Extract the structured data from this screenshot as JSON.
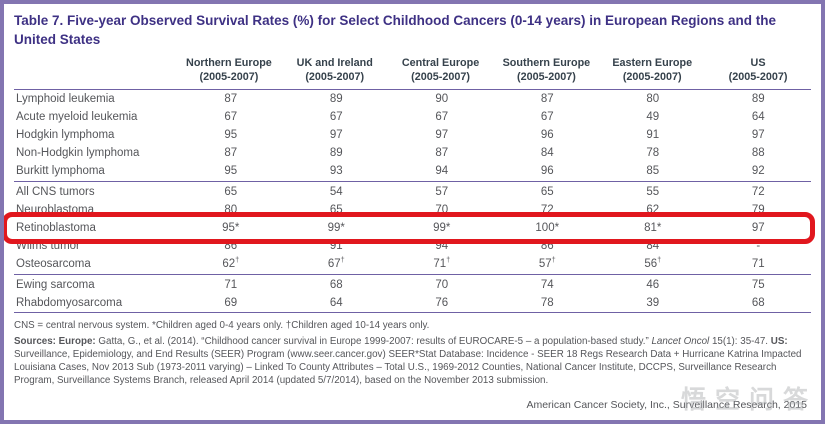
{
  "title": "Table 7. Five-year Observed Survival Rates (%) for Select Childhood Cancers (0-14 years) in European Regions and the United States",
  "table": {
    "columns": [
      {
        "region": "Northern Europe",
        "period": "(2005-2007)"
      },
      {
        "region": "UK and Ireland",
        "period": "(2005-2007)"
      },
      {
        "region": "Central Europe",
        "period": "(2005-2007)"
      },
      {
        "region": "Southern Europe",
        "period": "(2005-2007)"
      },
      {
        "region": "Eastern Europe",
        "period": "(2005-2007)"
      },
      {
        "region": "US",
        "period": "(2005-2007)"
      }
    ],
    "rows": [
      {
        "label": "Lymphoid leukemia",
        "values": [
          "87",
          "89",
          "90",
          "87",
          "80",
          "89"
        ],
        "rule_below": false,
        "highlighted": false
      },
      {
        "label": "Acute myeloid leukemia",
        "values": [
          "67",
          "67",
          "67",
          "67",
          "49",
          "64"
        ],
        "rule_below": false,
        "highlighted": false
      },
      {
        "label": "Hodgkin lymphoma",
        "values": [
          "95",
          "97",
          "97",
          "96",
          "91",
          "97"
        ],
        "rule_below": false,
        "highlighted": false
      },
      {
        "label": "Non-Hodgkin lymphoma",
        "values": [
          "87",
          "89",
          "87",
          "84",
          "78",
          "88"
        ],
        "rule_below": false,
        "highlighted": false
      },
      {
        "label": "Burkitt lymphoma",
        "values": [
          "95",
          "93",
          "94",
          "96",
          "85",
          "92"
        ],
        "rule_below": true,
        "highlighted": false
      },
      {
        "label": "All CNS tumors",
        "values": [
          "65",
          "54",
          "57",
          "65",
          "55",
          "72"
        ],
        "rule_below": false,
        "highlighted": false
      },
      {
        "label": "Neuroblastoma",
        "values": [
          "80",
          "65",
          "70",
          "72",
          "62",
          "79"
        ],
        "rule_below": false,
        "highlighted": false
      },
      {
        "label": "Retinoblastoma",
        "values": [
          "95*",
          "99*",
          "99*",
          "100*",
          "81*",
          "97"
        ],
        "rule_below": false,
        "highlighted": true
      },
      {
        "label": "Wilms tumor",
        "values": [
          "86",
          "91",
          "94",
          "86",
          "84",
          "-"
        ],
        "rule_below": false,
        "highlighted": false
      },
      {
        "label": "Osteosarcoma",
        "values": [
          "62†",
          "67†",
          "71†",
          "57†",
          "56†",
          "71"
        ],
        "rule_below": true,
        "highlighted": false
      },
      {
        "label": "Ewing sarcoma",
        "values": [
          "71",
          "68",
          "70",
          "74",
          "46",
          "75"
        ],
        "rule_below": false,
        "highlighted": false
      },
      {
        "label": "Rhabdomyosarcoma",
        "values": [
          "69",
          "64",
          "76",
          "78",
          "39",
          "68"
        ],
        "rule_below": false,
        "highlighted": false
      }
    ]
  },
  "footnote": "CNS = central nervous system. *Children aged 0-4 years only. †Children aged 10-14 years only.",
  "sources_segments": [
    {
      "text": "Sources: Europe: ",
      "style": "bold"
    },
    {
      "text": "Gatta, G., et al. (2014). “Childhood cancer survival in Europe 1999-2007: results of EUROCARE-5 – a population-based study.” ",
      "style": "normal"
    },
    {
      "text": "Lancet Oncol",
      "style": "italic"
    },
    {
      "text": " 15(1): 35-47. ",
      "style": "normal"
    },
    {
      "text": "US: ",
      "style": "bold"
    },
    {
      "text": "Surveillance, Epidemiology, and End Results (SEER) Program (www.seer.cancer.gov) SEER*Stat Database: Incidence - SEER 18 Regs Research Data + Hurricane Katrina Impacted Louisiana Cases, Nov 2013 Sub (1973-2011 varying) – Linked To County Attributes – Total U.S., 1969-2012 Counties, National Cancer Institute, DCCPS, Surveillance Research Program, Surveillance Systems Branch, released April 2014 (updated 5/7/2014), based on the November 2013 submission.",
      "style": "normal"
    }
  ],
  "credit": "American Cancer Society, Inc., Surveillance Research, 2015",
  "watermark": "悟空问答",
  "colors": {
    "frame_purple": "#8375b1",
    "title_purple": "#3e3184",
    "rule_purple": "#6f61a4",
    "header_text": "#36424c",
    "body_text": "#55565a",
    "highlight_red": "#e1171e"
  }
}
